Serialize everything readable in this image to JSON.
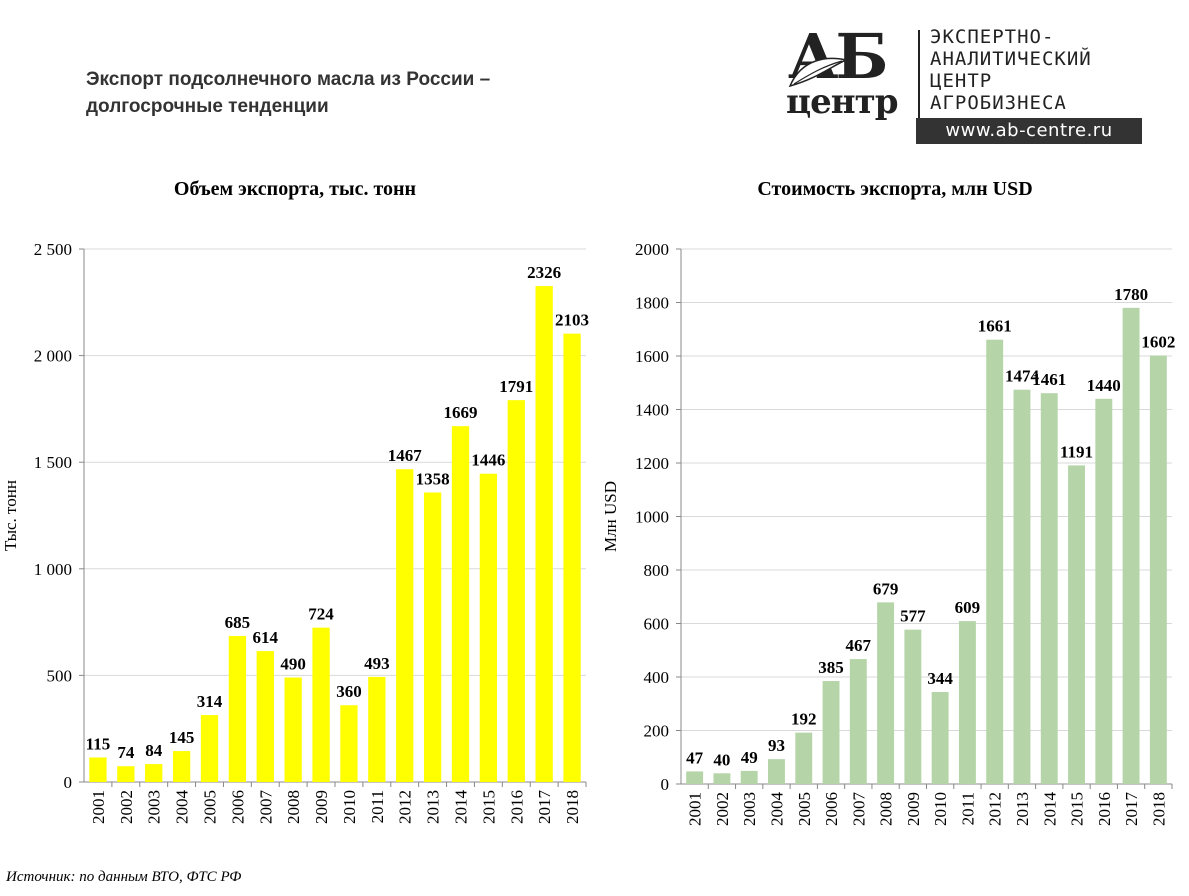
{
  "main_title": {
    "line1": "Экспорт подсолнечного масла из России –",
    "line2": "долгосрочные тенденции"
  },
  "logo": {
    "ab": "АБ",
    "center": "центр",
    "lines": [
      "ЭКСПЕРТНО-",
      "АНАЛИТИЧЕСКИЙ",
      "ЦЕНТР",
      "АГРОБИЗНЕСА"
    ],
    "url": "www.ab-centre.ru"
  },
  "source": "Источник: по данным ВТО, ФТС РФ",
  "chart_data": [
    {
      "type": "bar",
      "title": "Объем экспорта, тыс. тонн",
      "ylabel": "Тыс. тонн",
      "xlabel": "",
      "categories": [
        "2001",
        "2002",
        "2003",
        "2004",
        "2005",
        "2006",
        "2007",
        "2008",
        "2009",
        "2010",
        "2011",
        "2012",
        "2013",
        "2014",
        "2015",
        "2016",
        "2017",
        "2018"
      ],
      "values": [
        115,
        74,
        84,
        145,
        314,
        685,
        614,
        490,
        724,
        360,
        493,
        1467,
        1358,
        1669,
        1446,
        1791,
        2326,
        2103
      ],
      "ylim": [
        0,
        2500
      ],
      "yticks": [
        0,
        500,
        1000,
        1500,
        2000,
        2500
      ],
      "ytick_labels": [
        "0",
        "500",
        "1 000",
        "1 500",
        "2 000",
        "2 500"
      ],
      "bar_color": "#ffff00",
      "grid": true
    },
    {
      "type": "bar",
      "title": "Стоимость экспорта, млн USD",
      "ylabel": "Млн USD",
      "xlabel": "",
      "categories": [
        "2001",
        "2002",
        "2003",
        "2004",
        "2005",
        "2006",
        "2007",
        "2008",
        "2009",
        "2010",
        "2011",
        "2012",
        "2013",
        "2014",
        "2015",
        "2016",
        "2017",
        "2018"
      ],
      "values": [
        47,
        40,
        49,
        93,
        192,
        385,
        467,
        679,
        577,
        344,
        609,
        1661,
        1474,
        1461,
        1191,
        1440,
        1780,
        1602
      ],
      "ylim": [
        0,
        2000
      ],
      "yticks": [
        0,
        200,
        400,
        600,
        800,
        1000,
        1200,
        1400,
        1600,
        1800,
        2000
      ],
      "ytick_labels": [
        "0",
        "200",
        "400",
        "600",
        "800",
        "1000",
        "1200",
        "1400",
        "1600",
        "1800",
        "2000"
      ],
      "bar_color": "#b5d5a8",
      "grid": true
    }
  ]
}
